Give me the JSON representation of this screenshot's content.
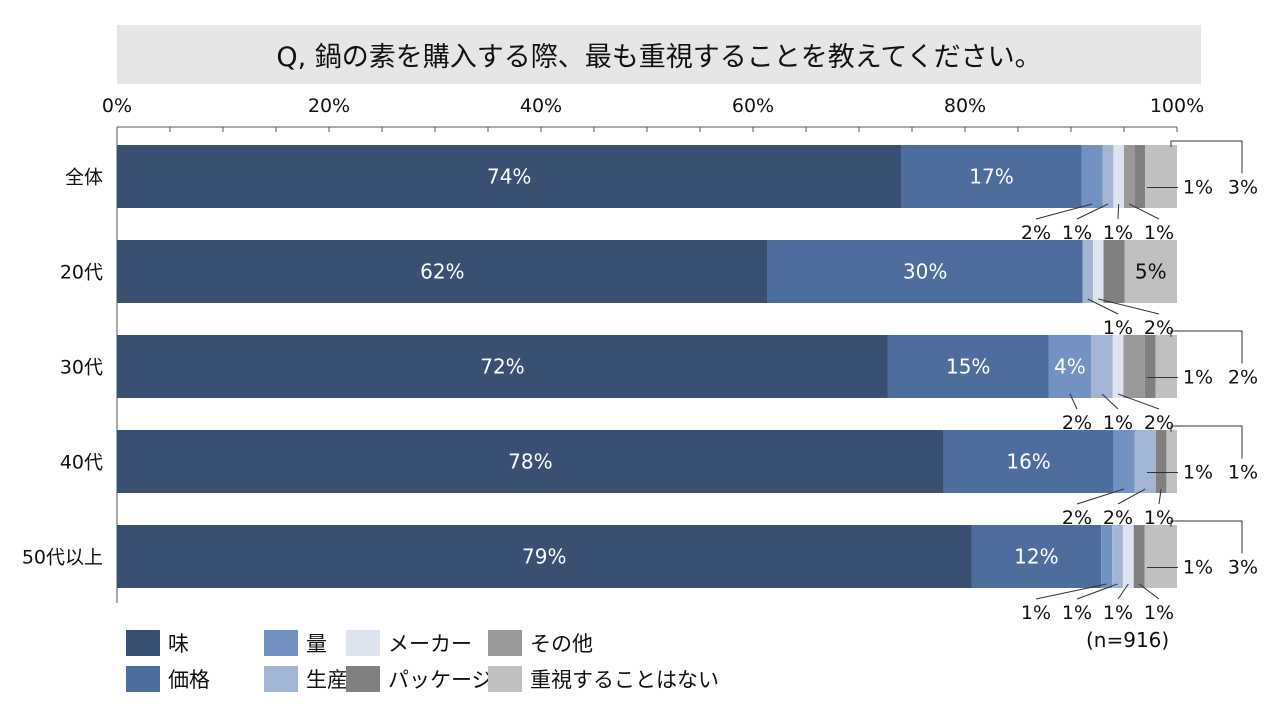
{
  "chart_data": {
    "type": "bar",
    "orientation": "horizontal",
    "stacked": "percent",
    "title": "Q, 鍋の素を購入する際、最も重視することを教えてください。",
    "xlim": [
      0,
      100
    ],
    "x_ticks": [
      "0%",
      "20%",
      "40%",
      "60%",
      "80%",
      "100%"
    ],
    "categories": [
      "全体",
      "20代",
      "30代",
      "40代",
      "50代以上"
    ],
    "series": [
      {
        "name": "味",
        "color": "#3a5072",
        "values": [
          74,
          62,
          72,
          78,
          79
        ]
      },
      {
        "name": "価格",
        "color": "#4d6d9c",
        "values": [
          17,
          30,
          15,
          16,
          12
        ]
      },
      {
        "name": "量",
        "color": "#7292c2",
        "values": [
          2,
          0,
          4,
          2,
          1
        ]
      },
      {
        "name": "生産国",
        "color": "#a3b5d5",
        "values": [
          1,
          1,
          2,
          2,
          1
        ]
      },
      {
        "name": "メーカー",
        "color": "#dde4ef",
        "values": [
          1,
          1,
          1,
          0,
          1
        ]
      },
      {
        "name": "その他",
        "color": "#999999",
        "values": [
          1,
          0,
          2,
          0,
          0
        ]
      },
      {
        "name": "パッケージ",
        "color": "#808080",
        "values": [
          1,
          2,
          1,
          1,
          1
        ]
      },
      {
        "name": "重視することはない",
        "color": "#c0c0c0",
        "values": [
          3,
          5,
          2,
          1,
          3
        ]
      }
    ],
    "labels": {
      "inside": [
        [
          "74%",
          "17%"
        ],
        [
          "62%",
          "30%",
          "5%"
        ],
        [
          "72%",
          "15%",
          "4%"
        ],
        [
          "78%",
          "16%"
        ],
        [
          "79%",
          "12%"
        ]
      ],
      "below": [
        [
          "2%",
          "1%",
          "1%",
          "1%"
        ],
        [
          "1%",
          "2%"
        ],
        [
          "2%",
          "1%",
          "2%"
        ],
        [
          "2%",
          "2%",
          "1%"
        ],
        [
          "1%",
          "1%",
          "1%",
          "1%"
        ]
      ],
      "right": [
        [
          "1%",
          "3%"
        ],
        [],
        [
          "1%",
          "2%"
        ],
        [
          "1%",
          "1%"
        ],
        [
          "1%",
          "3%"
        ]
      ]
    },
    "note": "(n=916)",
    "legend_position": "bottom-left",
    "legend_order": [
      "味",
      "量",
      "メーカー",
      "その他",
      "価格",
      "生産国",
      "パッケージ",
      "重視することはない"
    ]
  }
}
